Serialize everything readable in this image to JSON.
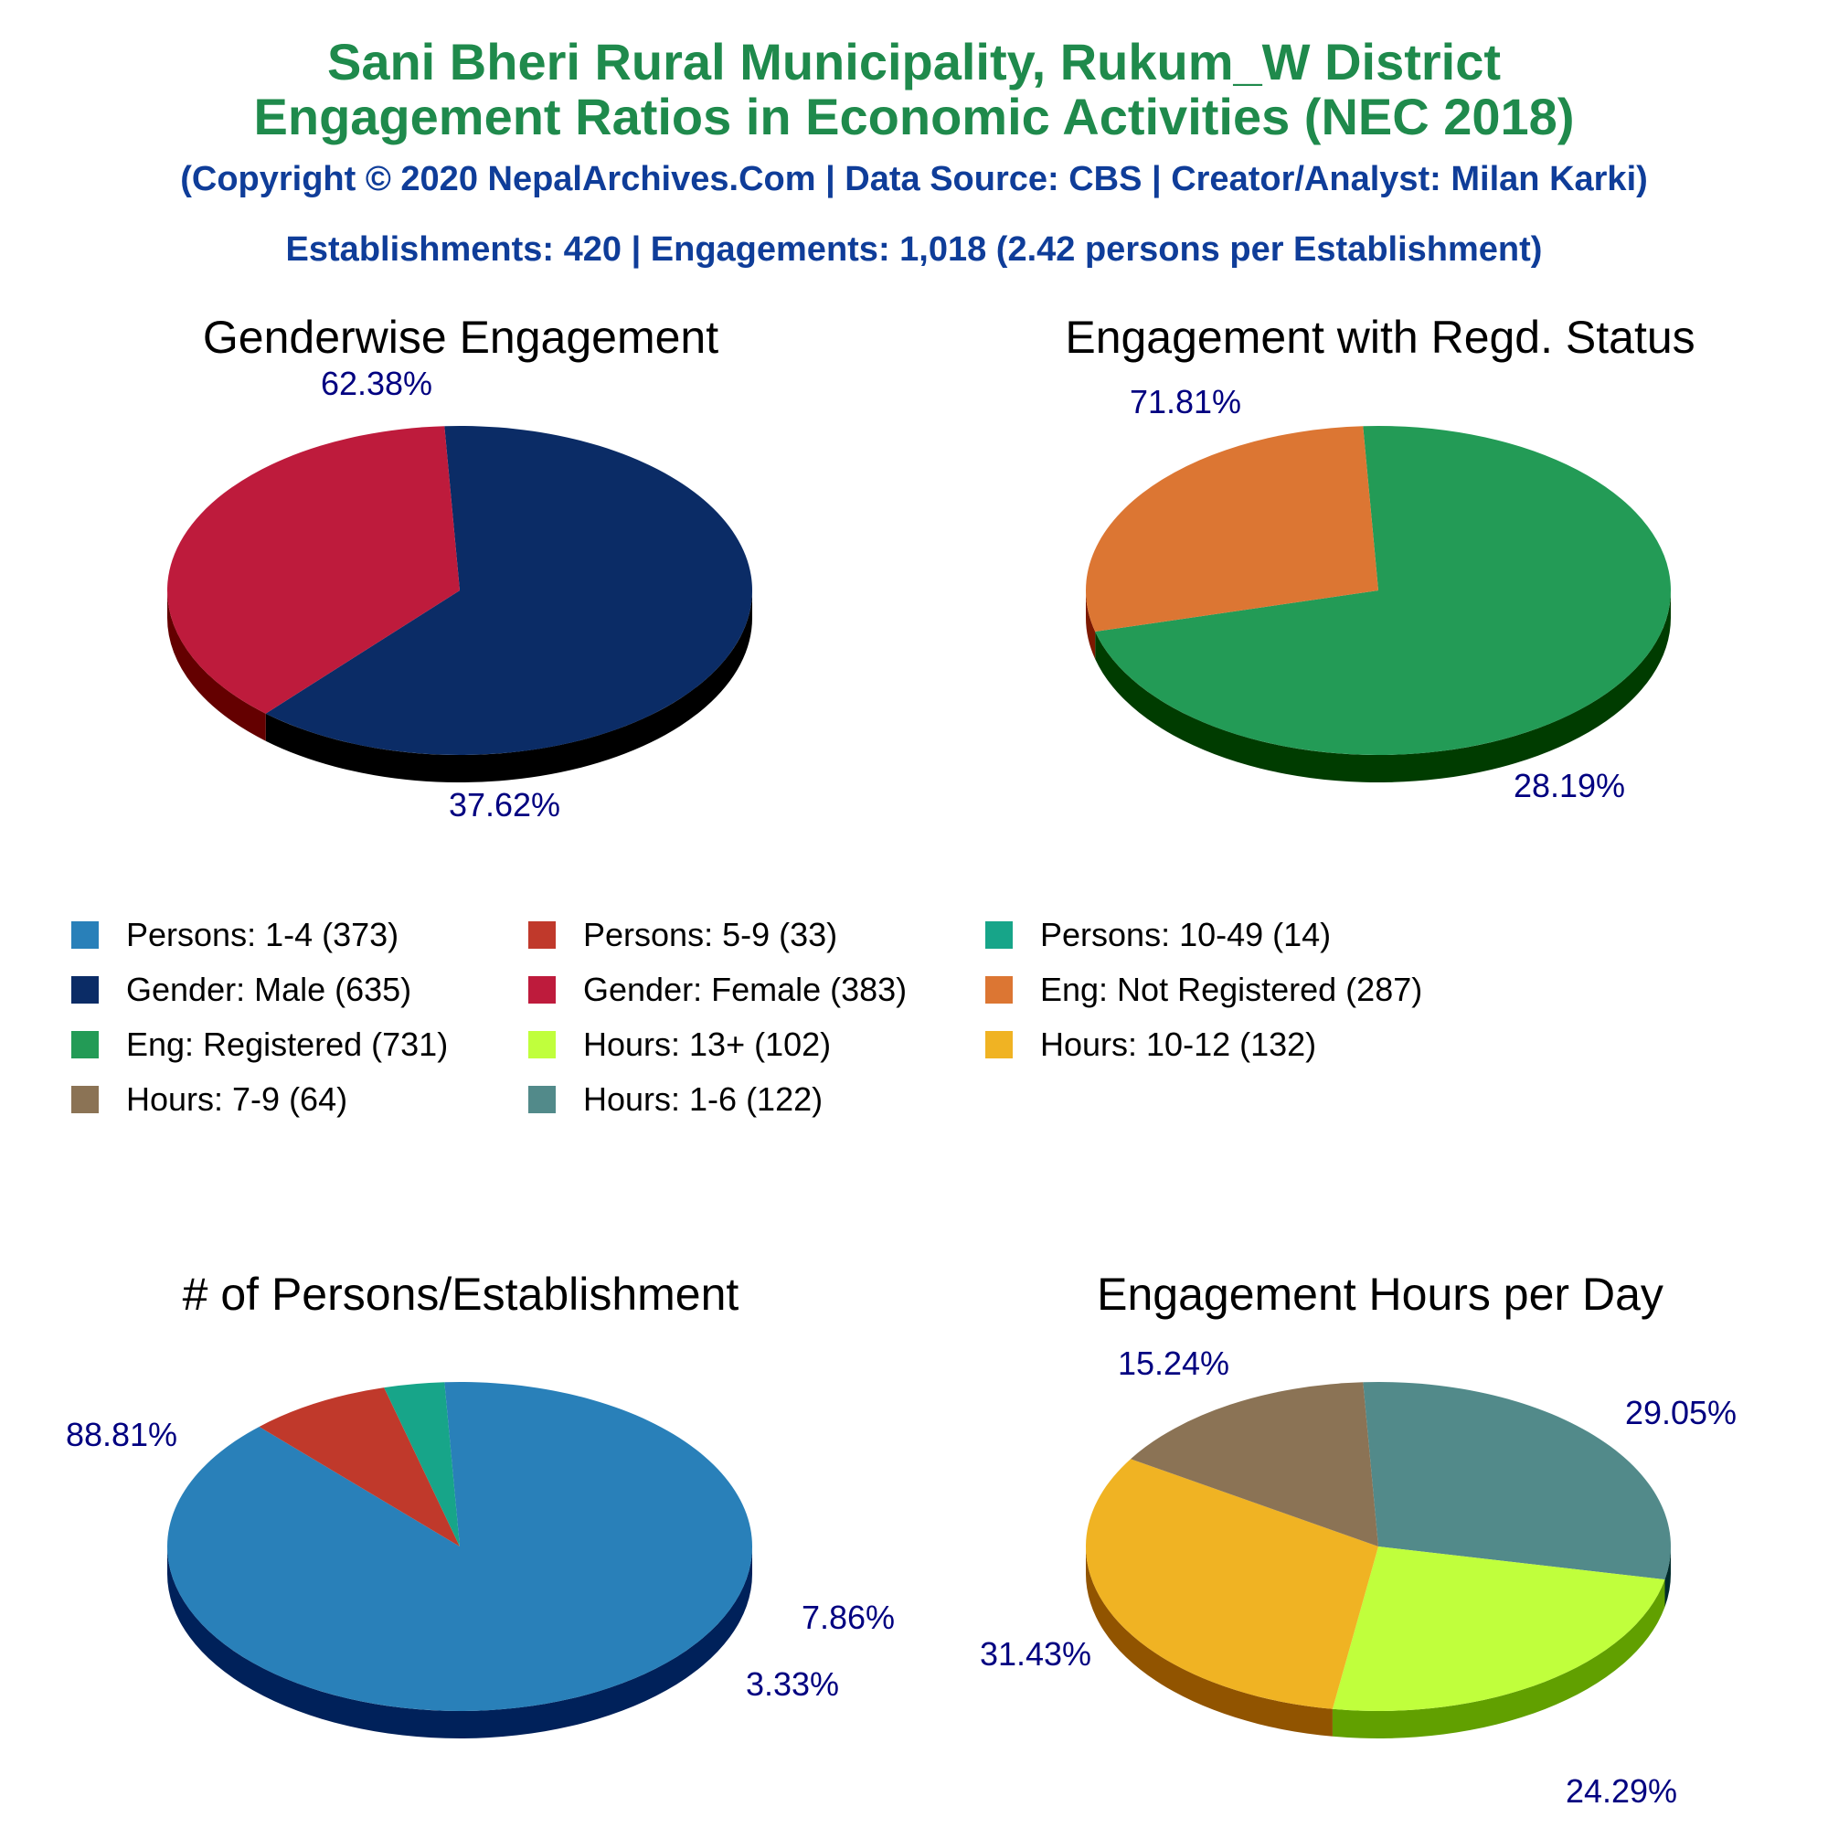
{
  "header": {
    "title_line1": "Sani Bheri Rural Municipality, Rukum_W District",
    "title_line2": "Engagement Ratios in Economic Activities (NEC 2018)",
    "copyright": "(Copyright © 2020 NepalArchives.Com | Data Source: CBS | Creator/Analyst: Milan Karki)",
    "summary": "Establishments: 420 | Engagements: 1,018 (2.42 persons per Establishment)"
  },
  "chart_data": [
    {
      "type": "pie",
      "title": "Genderwise Engagement",
      "slices": [
        {
          "name": "Gender: Male",
          "value": 635,
          "label": "62.38%",
          "color": "#0b2c66",
          "side": "#000000"
        },
        {
          "name": "Gender: Female",
          "value": 383,
          "label": "37.62%",
          "color": "#be1b3c",
          "side": "#640000"
        }
      ]
    },
    {
      "type": "pie",
      "title": "Engagement with Regd. Status",
      "slices": [
        {
          "name": "Eng: Registered",
          "value": 731,
          "label": "71.81%",
          "color": "#239b56",
          "side": "#003c00"
        },
        {
          "name": "Eng: Not Registered",
          "value": 287,
          "label": "28.19%",
          "color": "#dc7633",
          "side": "#7d1900"
        }
      ]
    },
    {
      "type": "pie",
      "title": "# of Persons/Establishment",
      "slices": [
        {
          "name": "Persons: 1-4",
          "value": 373,
          "label": "88.81%",
          "color": "#2980b9",
          "side": "#00215a"
        },
        {
          "name": "Persons: 5-9",
          "value": 33,
          "label": "7.86%",
          "color": "#c0392b",
          "side": "#610000"
        },
        {
          "name": "Persons: 10-49",
          "value": 14,
          "label": "3.33%",
          "color": "#17a589",
          "side": "#00462a"
        }
      ]
    },
    {
      "type": "pie",
      "title": "Engagement Hours per Day",
      "slices": [
        {
          "name": "Hours: 1-6",
          "value": 122,
          "label": "29.05%",
          "color": "#528a8a",
          "side": "#002b2b"
        },
        {
          "name": "Hours: 13+",
          "value": 102,
          "label": "24.29%",
          "color": "#c0ff3c",
          "side": "#61a000"
        },
        {
          "name": "Hours: 10-12",
          "value": 132,
          "label": "31.43%",
          "color": "#f0b323",
          "side": "#915400"
        },
        {
          "name": "Hours: 7-9",
          "value": 64,
          "label": "15.24%",
          "color": "#8b7355",
          "side": "#2c1400"
        }
      ]
    }
  ],
  "legend": [
    {
      "label": "Persons: 1-4 (373)",
      "color": "#2980b9"
    },
    {
      "label": "Persons: 5-9 (33)",
      "color": "#c0392b"
    },
    {
      "label": "Persons: 10-49 (14)",
      "color": "#17a589"
    },
    {
      "label": "Gender: Male (635)",
      "color": "#0b2c66"
    },
    {
      "label": "Gender: Female (383)",
      "color": "#be1b3c"
    },
    {
      "label": "Eng: Not Registered (287)",
      "color": "#dc7633"
    },
    {
      "label": "Eng: Registered (731)",
      "color": "#239b56"
    },
    {
      "label": "Hours: 13+ (102)",
      "color": "#c0ff3c"
    },
    {
      "label": "Hours: 10-12 (132)",
      "color": "#f0b323"
    },
    {
      "label": "Hours: 7-9 (64)",
      "color": "#8b7355"
    },
    {
      "label": "Hours: 1-6 (122)",
      "color": "#528a8a"
    }
  ],
  "label_color": "#000080"
}
